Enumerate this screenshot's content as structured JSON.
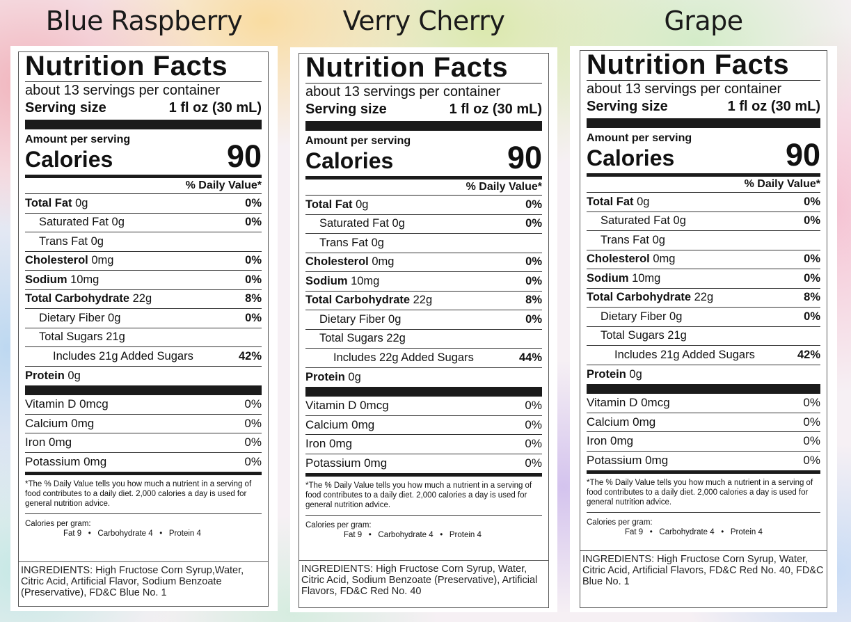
{
  "labels": [
    {
      "flavor": "Blue Raspberry",
      "title": "Nutrition Facts",
      "servings": "about 13 servings per container",
      "serving_size_label": "Serving size",
      "serving_size_value": "1 fl oz (30 mL)",
      "amount_per_serving": "Amount per serving",
      "calories_label": "Calories",
      "calories_value": "90",
      "dv_header": "% Daily Value*",
      "total_fat": {
        "label": "Total Fat",
        "amount": " 0g",
        "dv": "0%"
      },
      "saturated_fat": {
        "label": "Saturated Fat 0g",
        "dv": "0%"
      },
      "trans_fat": {
        "label": "Trans Fat 0g"
      },
      "cholesterol": {
        "label": "Cholesterol",
        "amount": " 0mg",
        "dv": "0%"
      },
      "sodium": {
        "label": "Sodium",
        "amount": " 10mg",
        "dv": "0%"
      },
      "total_carb": {
        "label": "Total Carbohydrate",
        "amount": " 22g",
        "dv": "8%"
      },
      "dietary_fiber": {
        "label": "Dietary Fiber 0g",
        "dv": "0%"
      },
      "total_sugars": {
        "label": "Total Sugars 21g"
      },
      "added_sugars": {
        "label": "Includes 21g Added Sugars",
        "dv": "42%"
      },
      "protein": {
        "label": "Protein",
        "amount": " 0g"
      },
      "vitamin_d": {
        "label": "Vitamin D 0mcg",
        "dv": "0%"
      },
      "calcium": {
        "label": "Calcium 0mg",
        "dv": "0%"
      },
      "iron": {
        "label": "Iron 0mg",
        "dv": "0%"
      },
      "potassium": {
        "label": "Potassium 0mg",
        "dv": "0%"
      },
      "footnote": "*The % Daily Value tells you how much a nutrient in a serving of food contributes to a daily diet. 2,000 calories a day is used for general nutrition advice.",
      "calories_per_gram": "Calories per gram:",
      "calories_per_gram_values": "Fat 9   •   Carbohydrate 4   •   Protein 4",
      "ingredients": "INGREDIENTS: High Fructose Corn Syrup,Water, Citric Acid, Artificial Flavor, Sodium Benzoate (Preservative), FD&C Blue No. 1"
    },
    {
      "flavor": "Verry Cherry",
      "title": "Nutrition Facts",
      "servings": "about 13 servings per container",
      "serving_size_label": "Serving size",
      "serving_size_value": "1 fl oz (30 mL)",
      "amount_per_serving": "Amount per serving",
      "calories_label": "Calories",
      "calories_value": "90",
      "dv_header": "% Daily Value*",
      "total_fat": {
        "label": "Total Fat",
        "amount": " 0g",
        "dv": "0%"
      },
      "saturated_fat": {
        "label": "Saturated Fat 0g",
        "dv": "0%"
      },
      "trans_fat": {
        "label": "Trans Fat 0g"
      },
      "cholesterol": {
        "label": "Cholesterol",
        "amount": " 0mg",
        "dv": "0%"
      },
      "sodium": {
        "label": "Sodium",
        "amount": " 10mg",
        "dv": "0%"
      },
      "total_carb": {
        "label": "Total Carbohydrate",
        "amount": " 22g",
        "dv": "8%"
      },
      "dietary_fiber": {
        "label": "Dietary Fiber 0g",
        "dv": "0%"
      },
      "total_sugars": {
        "label": "Total Sugars 22g"
      },
      "added_sugars": {
        "label": "Includes 22g Added Sugars",
        "dv": "44%"
      },
      "protein": {
        "label": "Protein",
        "amount": " 0g"
      },
      "vitamin_d": {
        "label": "Vitamin D 0mcg",
        "dv": "0%"
      },
      "calcium": {
        "label": "Calcium 0mg",
        "dv": "0%"
      },
      "iron": {
        "label": "Iron 0mg",
        "dv": "0%"
      },
      "potassium": {
        "label": "Potassium 0mg",
        "dv": "0%"
      },
      "footnote": "*The % Daily Value tells you how much a nutrient in a serving of food contributes to a daily diet. 2,000 calories a day is used for general nutrition advice.",
      "calories_per_gram": "Calories per gram:",
      "calories_per_gram_values": "Fat 9   •   Carbohydrate 4   •   Protein 4",
      "ingredients": "INGREDIENTS: High Fructose Corn Syrup, Water, Citric Acid, Sodium Benzoate (Preservative), Artificial Flavors, FD&C Red No. 40"
    },
    {
      "flavor": "Grape",
      "title": "Nutrition Facts",
      "servings": "about 13 servings per container",
      "serving_size_label": "Serving size",
      "serving_size_value": "1 fl oz (30 mL)",
      "amount_per_serving": "Amount per serving",
      "calories_label": "Calories",
      "calories_value": "90",
      "dv_header": "% Daily Value*",
      "total_fat": {
        "label": "Total Fat",
        "amount": " 0g",
        "dv": "0%"
      },
      "saturated_fat": {
        "label": "Saturated Fat 0g",
        "dv": "0%"
      },
      "trans_fat": {
        "label": "Trans Fat 0g"
      },
      "cholesterol": {
        "label": "Cholesterol",
        "amount": " 0mg",
        "dv": "0%"
      },
      "sodium": {
        "label": "Sodium",
        "amount": " 10mg",
        "dv": "0%"
      },
      "total_carb": {
        "label": "Total Carbohydrate",
        "amount": " 22g",
        "dv": "8%"
      },
      "dietary_fiber": {
        "label": "Dietary Fiber 0g",
        "dv": "0%"
      },
      "total_sugars": {
        "label": "Total Sugars 21g"
      },
      "added_sugars": {
        "label": "Includes 21g Added Sugars",
        "dv": "42%"
      },
      "protein": {
        "label": "Protein",
        "amount": " 0g"
      },
      "vitamin_d": {
        "label": "Vitamin D 0mcg",
        "dv": "0%"
      },
      "calcium": {
        "label": "Calcium 0mg",
        "dv": "0%"
      },
      "iron": {
        "label": "Iron 0mg",
        "dv": "0%"
      },
      "potassium": {
        "label": "Potassium 0mg",
        "dv": "0%"
      },
      "footnote": "*The % Daily Value tells you how much a nutrient in a serving of food contributes to a daily diet. 2,000 calories a day is used for general nutrition advice.",
      "calories_per_gram": "Calories per gram:",
      "calories_per_gram_values": "Fat 9   •   Carbohydrate 4   •   Protein 4",
      "ingredients": "INGREDIENTS: High Fructose Corn Syrup, Water, Citric Acid, Artificial Flavors, FD&C Red No. 40, FD&C Blue No. 1"
    }
  ]
}
